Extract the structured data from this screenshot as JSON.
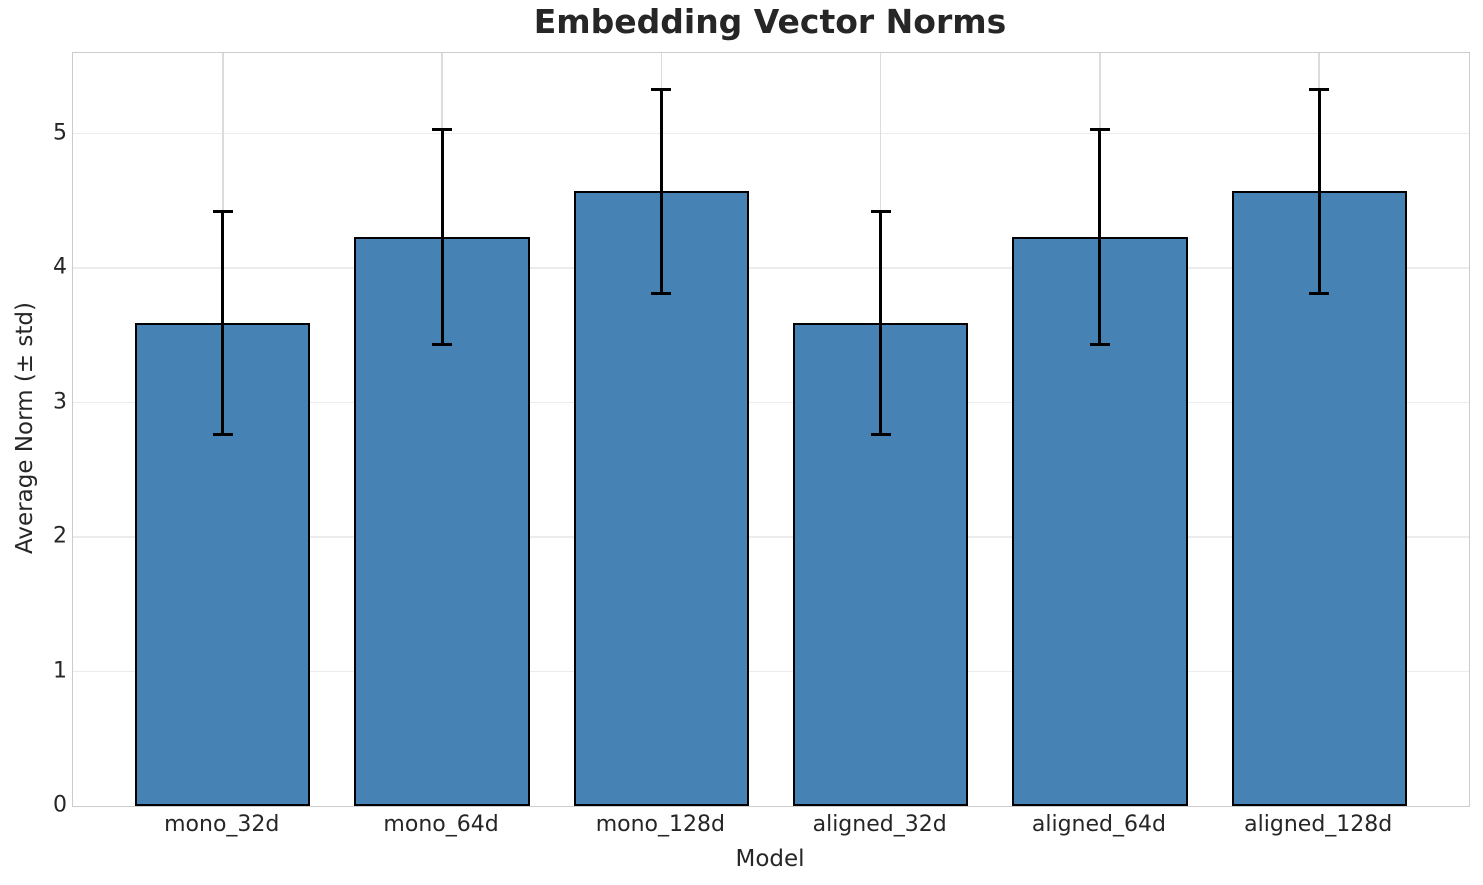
{
  "chart_data": {
    "type": "bar",
    "title": "Embedding Vector Norms",
    "xlabel": "Model",
    "ylabel": "Average Norm (± std)",
    "categories": [
      "mono_32d",
      "mono_64d",
      "mono_128d",
      "aligned_32d",
      "aligned_64d",
      "aligned_128d"
    ],
    "values": [
      3.59,
      4.23,
      4.57,
      3.59,
      4.23,
      4.57
    ],
    "errors": [
      0.83,
      0.8,
      0.76,
      0.83,
      0.8,
      0.76
    ],
    "yticks": [
      0,
      1,
      2,
      3,
      4,
      5
    ],
    "ylim": [
      0,
      5.6
    ],
    "grid": true,
    "legend": "none",
    "bar_color": "#4682b4",
    "bar_edge_color": "#000000",
    "error_color": "#000000",
    "bar_width_fraction": 0.8
  }
}
